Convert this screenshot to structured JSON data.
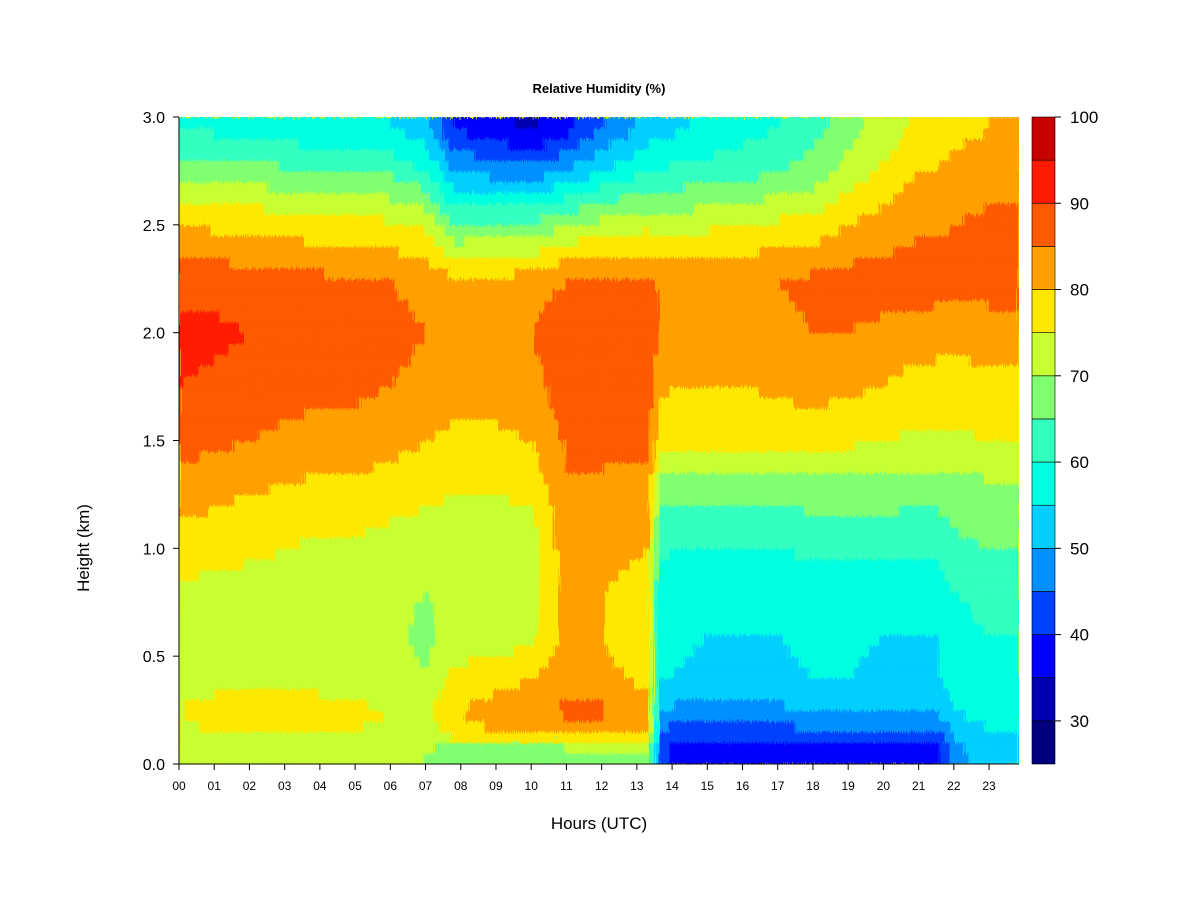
{
  "chart_data": {
    "type": "heatmap",
    "title": "Relative Humidity (%)",
    "xlabel": "Hours (UTC)",
    "ylabel": "Height (km)",
    "x_ticks": [
      "00",
      "01",
      "02",
      "03",
      "04",
      "05",
      "06",
      "07",
      "08",
      "09",
      "10",
      "11",
      "12",
      "13",
      "14",
      "15",
      "16",
      "17",
      "18",
      "19",
      "20",
      "21",
      "22",
      "23"
    ],
    "xlim": [
      0,
      23.85
    ],
    "y_ticks": [
      "0.0",
      "0.5",
      "1.0",
      "1.5",
      "2.0",
      "2.5",
      "3.0"
    ],
    "ylim": [
      0,
      3.0
    ],
    "colorbar": {
      "levels": [
        25,
        30,
        35,
        40,
        45,
        50,
        55,
        60,
        65,
        70,
        75,
        80,
        85,
        90,
        95,
        100
      ],
      "tick_labels": [
        "30",
        "40",
        "50",
        "60",
        "70",
        "80",
        "90",
        "100"
      ],
      "colors": [
        "#00007F",
        "#0000B2",
        "#0000FF",
        "#0040FF",
        "#0090FF",
        "#00CFFF",
        "#00FFE0",
        "#30FFC0",
        "#80FF70",
        "#C8FF30",
        "#FFE800",
        "#FFA000",
        "#FF5A00",
        "#FF1A00",
        "#C80000",
        "#800000"
      ]
    },
    "heights_km": [
      0.05,
      0.15,
      0.25,
      0.4,
      0.6,
      0.8,
      1.0,
      1.25,
      1.5,
      1.75,
      2.0,
      2.25,
      2.5,
      2.75,
      2.95
    ],
    "hours": [
      0,
      1,
      2,
      3,
      4,
      5,
      6,
      7,
      7.8,
      9,
      10,
      11,
      12,
      13.3,
      13.7,
      14,
      15,
      16,
      17,
      18,
      19,
      20,
      21,
      21.5,
      22,
      23,
      23.85
    ],
    "rh_values": [
      [
        73,
        73,
        73,
        73,
        73,
        73,
        73,
        70,
        66,
        66,
        66,
        66,
        69,
        70,
        42,
        38,
        36,
        35,
        36,
        37,
        38,
        38,
        37,
        37,
        48,
        52,
        52
      ],
      [
        74,
        75,
        75,
        75,
        75,
        75,
        74,
        72,
        78,
        80,
        81,
        82,
        82,
        80,
        44,
        43,
        42,
        42,
        43,
        44,
        45,
        44,
        44,
        44,
        52,
        55,
        55
      ],
      [
        75,
        77,
        77,
        77,
        77,
        76,
        75,
        73,
        80,
        82,
        84,
        86,
        86,
        82,
        50,
        49,
        48,
        48,
        49,
        50,
        51,
        50,
        50,
        50,
        55,
        57,
        57
      ],
      [
        73,
        73,
        73,
        73,
        73,
        72,
        72,
        70,
        76,
        78,
        80,
        83,
        82,
        78,
        55,
        55,
        54,
        54,
        54,
        55,
        55,
        54,
        54,
        54,
        57,
        58,
        58
      ],
      [
        73,
        72,
        72,
        72,
        72,
        72,
        71,
        69,
        72,
        72,
        73,
        82,
        80,
        76,
        56,
        56,
        55,
        55,
        55,
        56,
        56,
        55,
        55,
        55,
        58,
        60,
        60
      ],
      [
        74,
        73,
        73,
        73,
        72,
        72,
        71,
        70,
        71,
        72,
        72,
        83,
        80,
        78,
        57,
        57,
        56,
        56,
        56,
        57,
        57,
        57,
        56,
        56,
        60,
        62,
        62
      ],
      [
        78,
        77,
        76,
        75,
        74,
        74,
        73,
        72,
        72,
        72,
        72,
        83,
        82,
        80,
        61,
        60,
        60,
        60,
        60,
        61,
        61,
        61,
        62,
        62,
        64,
        65,
        65
      ],
      [
        82,
        81,
        80,
        79,
        78,
        78,
        77,
        76,
        75,
        75,
        76,
        84,
        84,
        83,
        66,
        66,
        66,
        66,
        66,
        67,
        67,
        67,
        66,
        66,
        67,
        68,
        68
      ],
      [
        87,
        86,
        85,
        84,
        83,
        83,
        82,
        80,
        79,
        79,
        80,
        86,
        86,
        86,
        77,
        76,
        76,
        76,
        76,
        77,
        76,
        75,
        74,
        74,
        74,
        75,
        75
      ],
      [
        90,
        89,
        88,
        87,
        86,
        86,
        85,
        83,
        82,
        82,
        83,
        88,
        88,
        88,
        81,
        80,
        80,
        80,
        81,
        82,
        81,
        80,
        78,
        78,
        78,
        79,
        79
      ],
      [
        92,
        91,
        90,
        89,
        88,
        88,
        87,
        85,
        84,
        84,
        85,
        89,
        89,
        89,
        84,
        83,
        83,
        83,
        84,
        85,
        85,
        84,
        82,
        82,
        81,
        82,
        82
      ],
      [
        88,
        88,
        87,
        86,
        86,
        85,
        85,
        83,
        81,
        81,
        82,
        85,
        86,
        86,
        84,
        83,
        83,
        84,
        85,
        86,
        87,
        87,
        88,
        88,
        88,
        88,
        88
      ],
      [
        80,
        79,
        79,
        78,
        77,
        77,
        76,
        74,
        65,
        66,
        66,
        70,
        72,
        74,
        73,
        73,
        74,
        75,
        76,
        77,
        80,
        82,
        84,
        84,
        85,
        86,
        86
      ],
      [
        68,
        67,
        67,
        66,
        65,
        65,
        64,
        60,
        50,
        48,
        47,
        50,
        55,
        60,
        60,
        61,
        62,
        63,
        65,
        67,
        72,
        76,
        80,
        80,
        82,
        83,
        83
      ],
      [
        60,
        59,
        58,
        57,
        56,
        56,
        55,
        52,
        40,
        36,
        34,
        38,
        45,
        52,
        52,
        54,
        56,
        58,
        60,
        63,
        68,
        72,
        76,
        76,
        78,
        80,
        80
      ]
    ]
  }
}
